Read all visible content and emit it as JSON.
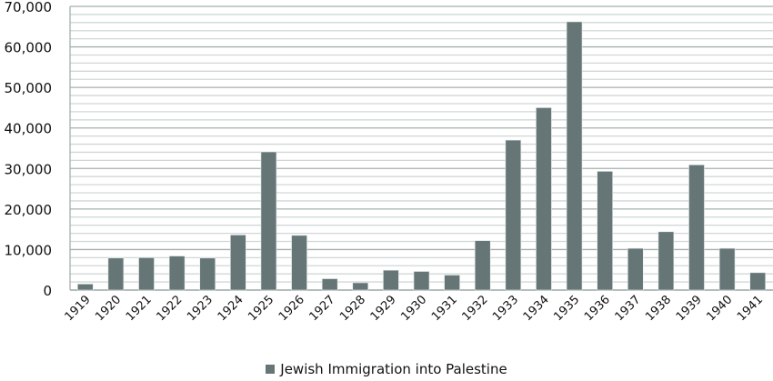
{
  "chart_data": {
    "type": "bar",
    "title": "",
    "xlabel": "",
    "ylabel": "",
    "ylim": [
      0,
      70000
    ],
    "yticks": [
      0,
      10000,
      20000,
      30000,
      40000,
      50000,
      60000,
      70000
    ],
    "ytick_labels": [
      "0",
      "10,000",
      "20,000",
      "30,000",
      "40,000",
      "50,000",
      "60,000",
      "70,000"
    ],
    "minor_grid_step": 2000,
    "grid": true,
    "legend_position": "bottom",
    "categories": [
      "1919",
      "1920",
      "1921",
      "1922",
      "1923",
      "1924",
      "1925",
      "1926",
      "1927",
      "1928",
      "1929",
      "1930",
      "1931",
      "1932",
      "1933",
      "1934",
      "1935",
      "1936",
      "1937",
      "1938",
      "1939",
      "1940",
      "1941"
    ],
    "series": [
      {
        "name": "Jewish Immigration into Palestine",
        "color": "#667676",
        "values": [
          1500,
          7900,
          8000,
          8400,
          7900,
          13600,
          34100,
          13500,
          2800,
          1800,
          4900,
          4600,
          3700,
          12200,
          37000,
          45000,
          66200,
          29300,
          10300,
          14400,
          30900,
          10300,
          4300
        ]
      }
    ]
  }
}
